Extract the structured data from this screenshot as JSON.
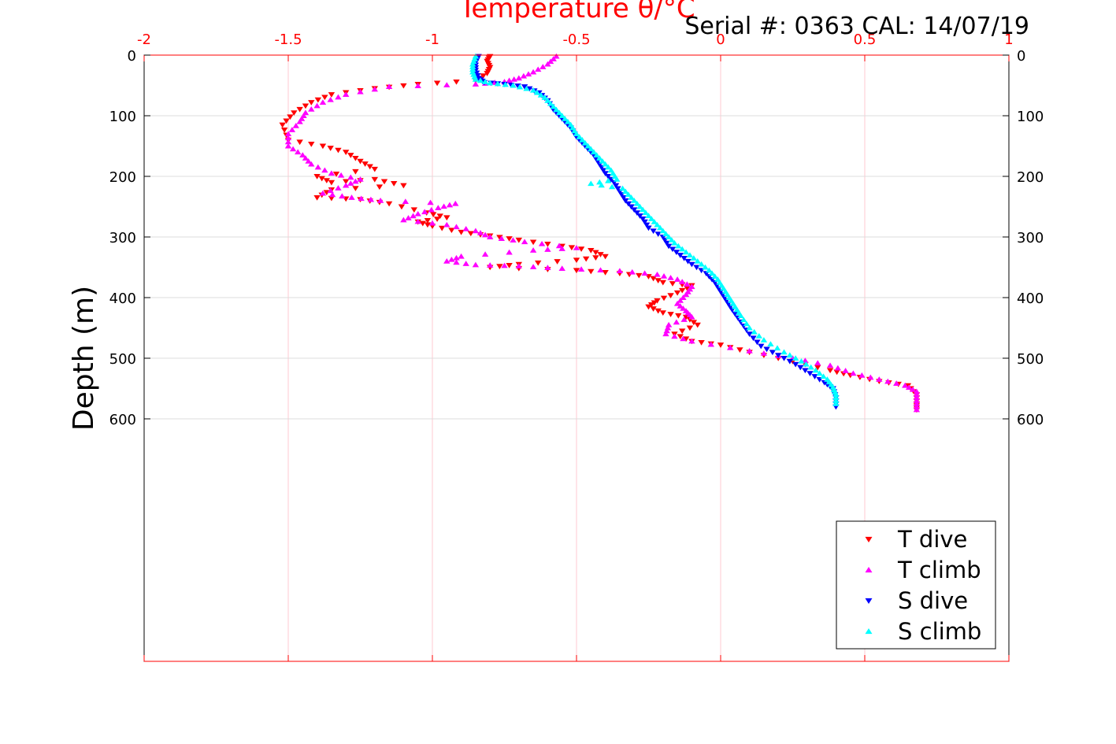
{
  "chart_data": {
    "type": "scatter",
    "title": "Temperature θ/°C",
    "subtitle": "Serial #: 0363  CAL: 14/07/19",
    "ylabel": "Depth (m)",
    "xlim": [
      -2,
      1
    ],
    "ylim": [
      0,
      1000
    ],
    "y_reversed": true,
    "x_ticks": [
      "-2",
      "-1.5",
      "-1",
      "-0.5",
      "0",
      "0.5",
      "1"
    ],
    "y_ticks": [
      "0",
      "100",
      "200",
      "300",
      "400",
      "500",
      "600"
    ],
    "grid": true,
    "legend_position": "bottom-right",
    "colors": {
      "axis": "#ff0000",
      "grid": "#ffc8d2",
      "frame": "#000000"
    },
    "series": [
      {
        "name": "T dive",
        "marker": "triangle-down",
        "color": "#ff0000",
        "points": [
          [
            -0.8,
            2
          ],
          [
            -0.81,
            10
          ],
          [
            -0.8,
            20
          ],
          [
            -0.81,
            30
          ],
          [
            -0.85,
            42
          ],
          [
            -1.05,
            48
          ],
          [
            -1.2,
            55
          ],
          [
            -1.35,
            65
          ],
          [
            -1.42,
            78
          ],
          [
            -1.48,
            95
          ],
          [
            -1.52,
            115
          ],
          [
            -1.5,
            140
          ],
          [
            -1.38,
            150
          ],
          [
            -1.3,
            160
          ],
          [
            -1.25,
            175
          ],
          [
            -1.2,
            188
          ],
          [
            -1.4,
            200
          ],
          [
            -1.35,
            210
          ],
          [
            -1.2,
            205
          ],
          [
            -1.1,
            215
          ],
          [
            -1.35,
            222
          ],
          [
            -1.4,
            235
          ],
          [
            -1.25,
            238
          ],
          [
            -1.15,
            245
          ],
          [
            -1.02,
            260
          ],
          [
            -0.95,
            268
          ],
          [
            -1.05,
            275
          ],
          [
            -1.0,
            282
          ],
          [
            -0.9,
            292
          ],
          [
            -0.8,
            298
          ],
          [
            -0.7,
            305
          ],
          [
            -0.55,
            315
          ],
          [
            -0.45,
            322
          ],
          [
            -0.4,
            332
          ],
          [
            -0.5,
            338
          ],
          [
            -0.7,
            345
          ],
          [
            -0.8,
            350
          ],
          [
            -0.5,
            355
          ],
          [
            -0.35,
            360
          ],
          [
            -0.25,
            365
          ],
          [
            -0.2,
            375
          ],
          [
            -0.1,
            380
          ],
          [
            -0.15,
            392
          ],
          [
            -0.22,
            405
          ],
          [
            -0.25,
            415
          ],
          [
            -0.2,
            425
          ],
          [
            -0.12,
            432
          ],
          [
            -0.08,
            445
          ],
          [
            -0.16,
            460
          ],
          [
            -0.1,
            472
          ],
          [
            0.0,
            478
          ],
          [
            0.1,
            490
          ],
          [
            0.25,
            505
          ],
          [
            0.38,
            520
          ],
          [
            0.45,
            528
          ],
          [
            0.55,
            538
          ],
          [
            0.65,
            545
          ],
          [
            0.68,
            560
          ],
          [
            0.68,
            575
          ],
          [
            0.68,
            585
          ]
        ]
      },
      {
        "name": "T climb",
        "marker": "triangle-up",
        "color": "#ff00ff",
        "points": [
          [
            -0.57,
            2
          ],
          [
            -0.6,
            15
          ],
          [
            -0.65,
            28
          ],
          [
            -0.7,
            38
          ],
          [
            -0.75,
            44
          ],
          [
            -0.85,
            48
          ],
          [
            -1.15,
            52
          ],
          [
            -1.3,
            65
          ],
          [
            -1.38,
            78
          ],
          [
            -1.44,
            95
          ],
          [
            -1.46,
            110
          ],
          [
            -1.5,
            130
          ],
          [
            -1.5,
            150
          ],
          [
            -1.45,
            165
          ],
          [
            -1.42,
            180
          ],
          [
            -1.35,
            195
          ],
          [
            -1.25,
            205
          ],
          [
            -1.3,
            215
          ],
          [
            -1.38,
            228
          ],
          [
            -1.28,
            235
          ],
          [
            -1.18,
            240
          ],
          [
            -0.92,
            245
          ],
          [
            -0.98,
            252
          ],
          [
            -1.05,
            262
          ],
          [
            -1.1,
            272
          ],
          [
            -0.95,
            280
          ],
          [
            -0.85,
            290
          ],
          [
            -0.8,
            300
          ],
          [
            -0.68,
            308
          ],
          [
            -0.5,
            318
          ],
          [
            -0.65,
            322
          ],
          [
            -0.9,
            332
          ],
          [
            -0.95,
            340
          ],
          [
            -0.85,
            346
          ],
          [
            -0.7,
            348
          ],
          [
            -0.55,
            352
          ],
          [
            -0.35,
            356
          ],
          [
            -0.22,
            362
          ],
          [
            -0.15,
            370
          ],
          [
            -0.1,
            382
          ],
          [
            -0.12,
            395
          ],
          [
            -0.15,
            410
          ],
          [
            -0.12,
            422
          ],
          [
            -0.1,
            432
          ],
          [
            -0.18,
            445
          ],
          [
            -0.19,
            460
          ],
          [
            -0.1,
            472
          ],
          [
            0.1,
            488
          ],
          [
            0.25,
            500
          ],
          [
            0.38,
            512
          ],
          [
            0.46,
            525
          ],
          [
            0.55,
            535
          ],
          [
            0.64,
            545
          ],
          [
            0.68,
            555
          ],
          [
            0.68,
            570
          ],
          [
            0.68,
            585
          ]
        ]
      },
      {
        "name": "S dive",
        "marker": "triangle-down",
        "color": "#0000ff",
        "points": [
          [
            -0.84,
            2
          ],
          [
            -0.85,
            12
          ],
          [
            -0.85,
            25
          ],
          [
            -0.84,
            38
          ],
          [
            -0.82,
            45
          ],
          [
            -0.75,
            48
          ],
          [
            -0.68,
            52
          ],
          [
            -0.63,
            62
          ],
          [
            -0.6,
            75
          ],
          [
            -0.58,
            90
          ],
          [
            -0.55,
            105
          ],
          [
            -0.52,
            120
          ],
          [
            -0.5,
            135
          ],
          [
            -0.47,
            150
          ],
          [
            -0.44,
            165
          ],
          [
            -0.42,
            180
          ],
          [
            -0.4,
            195
          ],
          [
            -0.37,
            210
          ],
          [
            -0.35,
            225
          ],
          [
            -0.33,
            240
          ],
          [
            -0.3,
            255
          ],
          [
            -0.27,
            270
          ],
          [
            -0.25,
            285
          ],
          [
            -0.2,
            300
          ],
          [
            -0.18,
            315
          ],
          [
            -0.14,
            330
          ],
          [
            -0.1,
            345
          ],
          [
            -0.05,
            360
          ],
          [
            -0.02,
            375
          ],
          [
            0.0,
            390
          ],
          [
            0.02,
            405
          ],
          [
            0.04,
            420
          ],
          [
            0.07,
            440
          ],
          [
            0.1,
            460
          ],
          [
            0.14,
            480
          ],
          [
            0.2,
            495
          ],
          [
            0.26,
            510
          ],
          [
            0.31,
            525
          ],
          [
            0.36,
            540
          ],
          [
            0.39,
            550
          ],
          [
            0.4,
            565
          ],
          [
            0.4,
            580
          ]
        ]
      },
      {
        "name": "S climb",
        "marker": "triangle-up",
        "color": "#00ffff",
        "points": [
          [
            -0.85,
            2
          ],
          [
            -0.86,
            15
          ],
          [
            -0.86,
            28
          ],
          [
            -0.85,
            40
          ],
          [
            -0.8,
            46
          ],
          [
            -0.72,
            50
          ],
          [
            -0.65,
            58
          ],
          [
            -0.61,
            70
          ],
          [
            -0.58,
            85
          ],
          [
            -0.55,
            100
          ],
          [
            -0.52,
            115
          ],
          [
            -0.5,
            130
          ],
          [
            -0.47,
            145
          ],
          [
            -0.44,
            160
          ],
          [
            -0.41,
            175
          ],
          [
            -0.38,
            190
          ],
          [
            -0.36,
            205
          ],
          [
            -0.45,
            212
          ],
          [
            -0.34,
            220
          ],
          [
            -0.31,
            235
          ],
          [
            -0.28,
            250
          ],
          [
            -0.25,
            265
          ],
          [
            -0.22,
            280
          ],
          [
            -0.19,
            295
          ],
          [
            -0.16,
            310
          ],
          [
            -0.12,
            325
          ],
          [
            -0.08,
            340
          ],
          [
            -0.04,
            355
          ],
          [
            -0.01,
            370
          ],
          [
            0.01,
            385
          ],
          [
            0.03,
            400
          ],
          [
            0.05,
            415
          ],
          [
            0.07,
            430
          ],
          [
            0.1,
            450
          ],
          [
            0.15,
            470
          ],
          [
            0.22,
            490
          ],
          [
            0.28,
            505
          ],
          [
            0.33,
            520
          ],
          [
            0.37,
            535
          ],
          [
            0.39,
            548
          ],
          [
            0.4,
            560
          ],
          [
            0.4,
            575
          ]
        ]
      }
    ]
  }
}
